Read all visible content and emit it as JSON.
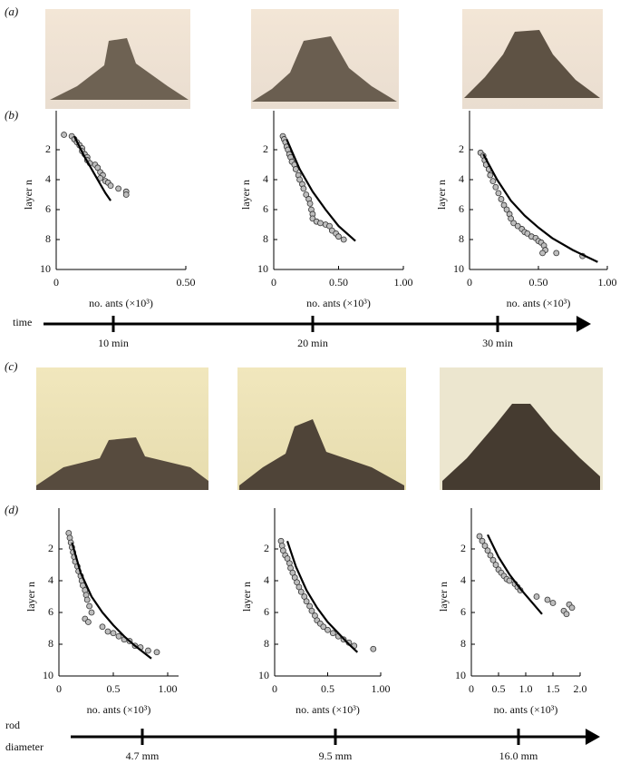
{
  "panel_labels": [
    "(a)",
    "(b)",
    "(c)",
    "(d)"
  ],
  "timeline_time": {
    "label": "time",
    "ticks": [
      "10 min",
      "20 min",
      "30 min"
    ]
  },
  "timeline_rod": {
    "label": [
      "rod",
      "diameter"
    ],
    "ticks": [
      "4.7 mm",
      "9.5 mm",
      "16.0 mm"
    ]
  },
  "chart_data": [
    {
      "type": "scatter",
      "ylabel": "layer n",
      "xlabel": "no. ants (×10³)",
      "xlim": [
        0,
        0.5
      ],
      "ylim": [
        10,
        0
      ],
      "xticks": [
        0,
        {
          "value": 0.5,
          "label": "0.50"
        }
      ],
      "yticks": [
        2,
        4,
        6,
        8,
        10
      ],
      "series": [
        {
          "type": "scatter",
          "color": "#bdbdbd",
          "x": [
            0.03,
            0.06,
            0.07,
            0.08,
            0.09,
            0.1,
            0.1,
            0.11,
            0.12,
            0.12,
            0.13,
            0.15,
            0.16,
            0.17,
            0.18,
            0.17,
            0.19,
            0.2,
            0.21,
            0.24,
            0.27,
            0.27
          ],
          "values": [
            1.0,
            1.1,
            1.3,
            1.5,
            1.7,
            1.9,
            2.1,
            2.3,
            2.5,
            2.7,
            2.9,
            3.0,
            3.2,
            3.5,
            3.7,
            3.9,
            4.1,
            4.2,
            4.4,
            4.6,
            4.8,
            5.0
          ]
        },
        {
          "type": "line",
          "color": "#000000",
          "x": [
            0.07,
            0.09,
            0.11,
            0.13,
            0.15,
            0.17,
            0.19,
            0.21
          ],
          "values": [
            1.1,
            1.8,
            2.5,
            3.1,
            3.7,
            4.3,
            4.9,
            5.4
          ]
        }
      ]
    },
    {
      "type": "scatter",
      "ylabel": "layer n",
      "xlabel": "no. ants (×10³)",
      "xlim": [
        0,
        1
      ],
      "ylim": [
        10,
        0
      ],
      "xticks": [
        0,
        {
          "value": 0.5,
          "label": "0.50"
        },
        {
          "value": 1,
          "label": "1.00"
        }
      ],
      "yticks": [
        2,
        4,
        6,
        8,
        10
      ],
      "series": [
        {
          "type": "scatter",
          "color": "#bdbdbd",
          "x": [
            0.07,
            0.08,
            0.09,
            0.1,
            0.11,
            0.12,
            0.13,
            0.14,
            0.16,
            0.17,
            0.19,
            0.2,
            0.22,
            0.23,
            0.25,
            0.27,
            0.28,
            0.29,
            0.3,
            0.3,
            0.33,
            0.36,
            0.4,
            0.43,
            0.45,
            0.48,
            0.5,
            0.54
          ],
          "values": [
            1.1,
            1.3,
            1.5,
            1.8,
            2.0,
            2.3,
            2.5,
            2.8,
            3.0,
            3.3,
            3.7,
            4.0,
            4.3,
            4.6,
            5.0,
            5.3,
            5.6,
            6.0,
            6.3,
            6.6,
            6.8,
            6.9,
            7.0,
            7.1,
            7.4,
            7.6,
            7.8,
            8.0
          ]
        },
        {
          "type": "line",
          "color": "#000000",
          "x": [
            0.1,
            0.15,
            0.2,
            0.3,
            0.4,
            0.5,
            0.63
          ],
          "values": [
            1.3,
            2.3,
            3.3,
            4.8,
            6.0,
            7.1,
            8.1
          ]
        }
      ]
    },
    {
      "type": "scatter",
      "ylabel": "layer n",
      "xlabel": "no. ants (×10³)",
      "xlim": [
        0,
        1
      ],
      "ylim": [
        10,
        0
      ],
      "xticks": [
        0,
        {
          "value": 0.5,
          "label": "0.50"
        },
        {
          "value": 1,
          "label": "1.00"
        }
      ],
      "yticks": [
        2,
        4,
        6,
        8,
        10
      ],
      "series": [
        {
          "type": "scatter",
          "color": "#bdbdbd",
          "x": [
            0.08,
            0.1,
            0.11,
            0.12,
            0.14,
            0.15,
            0.17,
            0.19,
            0.21,
            0.23,
            0.25,
            0.27,
            0.29,
            0.3,
            0.32,
            0.35,
            0.38,
            0.4,
            0.42,
            0.45,
            0.48,
            0.5,
            0.52,
            0.54,
            0.55,
            0.53,
            0.63,
            0.82
          ],
          "values": [
            2.2,
            2.4,
            2.7,
            3.0,
            3.3,
            3.7,
            4.1,
            4.5,
            4.9,
            5.3,
            5.7,
            6.0,
            6.3,
            6.6,
            6.9,
            7.1,
            7.3,
            7.5,
            7.6,
            7.8,
            7.9,
            8.1,
            8.2,
            8.4,
            8.7,
            8.9,
            8.9,
            9.1
          ]
        },
        {
          "type": "line",
          "color": "#000000",
          "x": [
            0.1,
            0.2,
            0.3,
            0.4,
            0.5,
            0.6,
            0.75,
            0.93
          ],
          "values": [
            2.3,
            4.0,
            5.4,
            6.4,
            7.2,
            7.9,
            8.7,
            9.5
          ]
        }
      ]
    },
    {
      "type": "scatter",
      "ylabel": "layer n",
      "xlabel": "no. ants (×10³)",
      "xlim": [
        0,
        1.1
      ],
      "ylim": [
        10,
        0
      ],
      "xticks": [
        0,
        0.5,
        {
          "value": 1,
          "label": "1.00"
        }
      ],
      "yticks": [
        2,
        4,
        6,
        8,
        10
      ],
      "series": [
        {
          "type": "scatter",
          "color": "#bdbdbd",
          "x": [
            0.09,
            0.1,
            0.11,
            0.12,
            0.13,
            0.14,
            0.15,
            0.17,
            0.18,
            0.2,
            0.21,
            0.22,
            0.24,
            0.25,
            0.26,
            0.28,
            0.3,
            0.24,
            0.27,
            0.4,
            0.45,
            0.5,
            0.55,
            0.6,
            0.65,
            0.7,
            0.75,
            0.82,
            0.9
          ],
          "values": [
            1.0,
            1.3,
            1.6,
            1.9,
            2.2,
            2.5,
            2.8,
            3.1,
            3.4,
            3.7,
            4.0,
            4.3,
            4.6,
            4.9,
            5.2,
            5.6,
            6.0,
            6.4,
            6.6,
            6.9,
            7.2,
            7.3,
            7.5,
            7.7,
            7.8,
            8.1,
            8.2,
            8.4,
            8.5
          ]
        },
        {
          "type": "line",
          "color": "#000000",
          "x": [
            0.12,
            0.2,
            0.3,
            0.4,
            0.5,
            0.6,
            0.7,
            0.85
          ],
          "values": [
            1.6,
            3.5,
            5.0,
            6.0,
            6.8,
            7.5,
            8.1,
            8.9
          ]
        }
      ]
    },
    {
      "type": "scatter",
      "ylabel": "layer n",
      "xlabel": "no. ants (×10³)",
      "xlim": [
        0,
        1
      ],
      "ylim": [
        10,
        0
      ],
      "xticks": [
        0,
        0.5,
        {
          "value": 1,
          "label": "1.00"
        }
      ],
      "yticks": [
        2,
        4,
        6,
        8,
        10
      ],
      "series": [
        {
          "type": "scatter",
          "color": "#bdbdbd",
          "x": [
            0.06,
            0.07,
            0.08,
            0.1,
            0.12,
            0.14,
            0.15,
            0.17,
            0.19,
            0.21,
            0.23,
            0.25,
            0.28,
            0.3,
            0.33,
            0.35,
            0.38,
            0.4,
            0.43,
            0.46,
            0.5,
            0.55,
            0.6,
            0.65,
            0.7,
            0.75,
            0.93
          ],
          "values": [
            1.5,
            1.8,
            2.1,
            2.4,
            2.6,
            2.9,
            3.2,
            3.5,
            3.8,
            4.1,
            4.4,
            4.7,
            5.0,
            5.3,
            5.6,
            5.9,
            6.2,
            6.5,
            6.7,
            6.9,
            7.1,
            7.3,
            7.5,
            7.7,
            7.9,
            8.1,
            8.3
          ]
        },
        {
          "type": "line",
          "color": "#000000",
          "x": [
            0.12,
            0.2,
            0.3,
            0.4,
            0.5,
            0.6,
            0.7,
            0.78
          ],
          "values": [
            1.5,
            3.1,
            4.6,
            5.7,
            6.6,
            7.3,
            8.0,
            8.5
          ]
        }
      ]
    },
    {
      "type": "scatter",
      "ylabel": "layer n",
      "xlabel": "no. ants (×10³)",
      "xlim": [
        0,
        2
      ],
      "ylim": [
        10,
        0
      ],
      "xticks": [
        0,
        0.5,
        {
          "value": 1,
          "label": "1.0"
        },
        1.5,
        {
          "value": 2,
          "label": "2.0"
        }
      ],
      "yticks": [
        2,
        4,
        6,
        8,
        10
      ],
      "series": [
        {
          "type": "scatter",
          "color": "#bdbdbd",
          "x": [
            0.15,
            0.2,
            0.25,
            0.3,
            0.35,
            0.4,
            0.45,
            0.5,
            0.55,
            0.6,
            0.65,
            0.7,
            0.8,
            0.85,
            0.9,
            1.2,
            1.4,
            1.5,
            1.7,
            1.75,
            1.8,
            1.85
          ],
          "values": [
            1.2,
            1.5,
            1.8,
            2.1,
            2.4,
            2.7,
            3.0,
            3.3,
            3.5,
            3.7,
            3.9,
            4.0,
            4.2,
            4.4,
            4.6,
            5.0,
            5.2,
            5.4,
            5.9,
            6.1,
            5.5,
            5.7
          ]
        },
        {
          "type": "line",
          "color": "#000000",
          "x": [
            0.3,
            0.5,
            0.7,
            0.9,
            1.1,
            1.3
          ],
          "values": [
            1.1,
            2.5,
            3.6,
            4.5,
            5.3,
            6.1
          ]
        }
      ]
    }
  ]
}
